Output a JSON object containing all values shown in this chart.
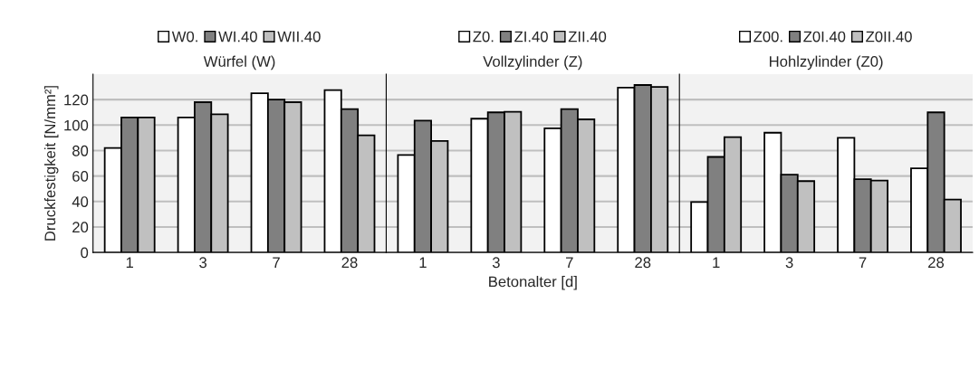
{
  "chart_data": [
    {
      "type": "bar",
      "title": "Würfel (W)",
      "ylabel": "Druckfestigkeit [N/mm²]",
      "categories": [
        "1",
        "3",
        "7",
        "28"
      ],
      "ylim": [
        0,
        140
      ],
      "yticks": [
        0,
        20,
        40,
        60,
        80,
        100,
        120
      ],
      "grid": "y",
      "legend": "top",
      "series": [
        {
          "name": "W0.",
          "color": "#ffffff",
          "values": [
            82,
            106,
            125,
            127.5
          ]
        },
        {
          "name": "WI.40",
          "color": "#808080",
          "values": [
            106,
            118,
            120,
            112.5
          ]
        },
        {
          "name": "WII.40",
          "color": "#c0c0c0",
          "values": [
            106,
            108.5,
            118,
            92
          ]
        }
      ]
    },
    {
      "type": "bar",
      "title": "Vollzylinder (Z)",
      "xlabel": "Betonalter [d]",
      "categories": [
        "1",
        "3",
        "7",
        "28"
      ],
      "ylim": [
        0,
        140
      ],
      "yticks": [
        0,
        20,
        40,
        60,
        80,
        100,
        120
      ],
      "grid": "y",
      "legend": "top",
      "tick_labels": "x",
      "series": [
        {
          "name": "Z0.",
          "color": "#ffffff",
          "values": [
            76.5,
            105,
            97.5,
            129.5
          ]
        },
        {
          "name": "ZI.40",
          "color": "#808080",
          "values": [
            103.5,
            110,
            112.5,
            131.5
          ]
        },
        {
          "name": "ZII.40",
          "color": "#c0c0c0",
          "values": [
            87.5,
            110.5,
            104.5,
            130
          ]
        }
      ]
    },
    {
      "type": "bar",
      "title": "Hohlzylinder (Z0)",
      "categories": [
        "1",
        "3",
        "7",
        "28"
      ],
      "ylim": [
        0,
        140
      ],
      "yticks": [
        0,
        20,
        40,
        60,
        80,
        100,
        120
      ],
      "grid": "y",
      "legend": "top",
      "tick_labels": "x",
      "series": [
        {
          "name": "Z00.",
          "color": "#ffffff",
          "values": [
            39.5,
            94,
            90,
            66
          ]
        },
        {
          "name": "Z0I.40",
          "color": "#808080",
          "values": [
            75,
            61,
            57.5,
            110
          ]
        },
        {
          "name": "Z0II.40",
          "color": "#c0c0c0",
          "values": [
            90.5,
            56,
            56.5,
            41.5
          ]
        }
      ]
    }
  ]
}
